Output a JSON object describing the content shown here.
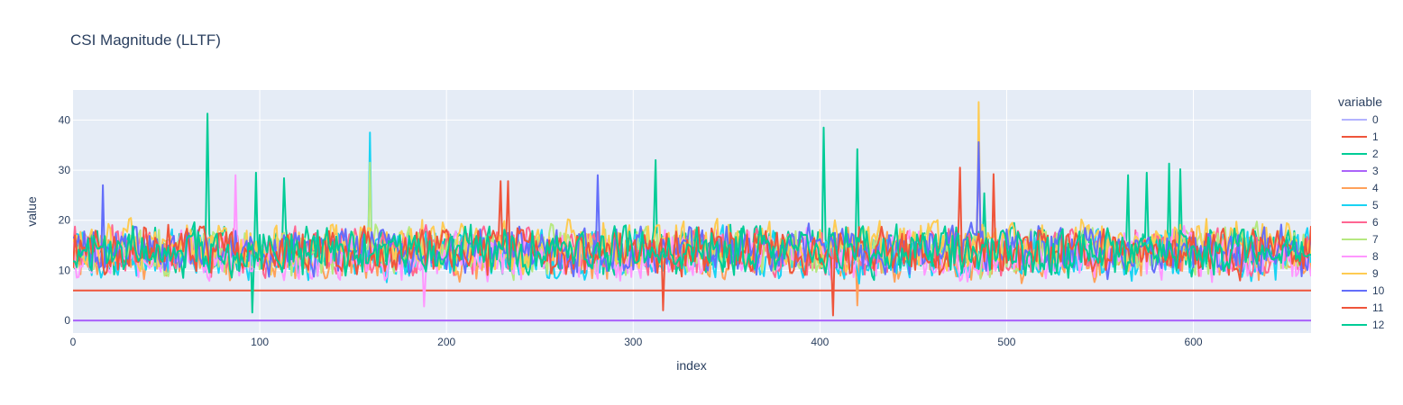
{
  "chart_data": {
    "type": "line",
    "title": "CSI Magnitude (LLTF)",
    "xlabel": "index",
    "ylabel": "value",
    "xlim": [
      0,
      663
    ],
    "ylim": [
      -2.5,
      46
    ],
    "x_ticks": [
      0,
      100,
      200,
      300,
      400,
      500,
      600
    ],
    "y_ticks": [
      0,
      10,
      20,
      30,
      40
    ],
    "grid": true,
    "legend_title": "variable",
    "legend_position": "right",
    "num_points": 664,
    "series": [
      {
        "name": "0",
        "color": "#b3b3ff",
        "kind": "constant",
        "value": 0
      },
      {
        "name": "1",
        "color": "#EF553B",
        "kind": "constant",
        "value": 6
      },
      {
        "name": "2",
        "color": "#00CC96",
        "kind": "noisy",
        "mean": 14,
        "amp": 5,
        "spikes": [
          [
            72,
            41.3
          ],
          [
            98,
            29.5
          ],
          [
            113,
            28.4
          ],
          [
            312,
            32
          ],
          [
            402,
            38.5
          ],
          [
            420,
            34.2
          ],
          [
            488,
            25.4
          ],
          [
            565,
            29
          ],
          [
            575,
            29.5
          ],
          [
            587,
            31.3
          ],
          [
            593,
            30.2
          ],
          [
            96,
            1.6
          ]
        ]
      },
      {
        "name": "3",
        "color": "#AB63FA",
        "kind": "constant",
        "value": 0
      },
      {
        "name": "4",
        "color": "#FFA15A",
        "kind": "noisy",
        "mean": 13,
        "amp": 5,
        "spikes": [
          [
            420,
            3
          ]
        ]
      },
      {
        "name": "5",
        "color": "#19D3F3",
        "kind": "noisy",
        "mean": 13,
        "amp": 5,
        "spikes": [
          [
            159,
            37.5
          ]
        ]
      },
      {
        "name": "6",
        "color": "#FF6692",
        "kind": "noisy",
        "mean": 14,
        "amp": 5,
        "spikes": [
          [
            485,
            33
          ]
        ]
      },
      {
        "name": "7",
        "color": "#B6E880",
        "kind": "noisy",
        "mean": 14,
        "amp": 5,
        "spikes": [
          [
            159,
            31.5
          ]
        ]
      },
      {
        "name": "8",
        "color": "#FF97FF",
        "kind": "noisy",
        "mean": 13,
        "amp": 5,
        "spikes": [
          [
            87,
            29
          ],
          [
            188,
            2.8
          ]
        ]
      },
      {
        "name": "9",
        "color": "#FECB52",
        "kind": "noisy",
        "mean": 15,
        "amp": 5,
        "spikes": [
          [
            485,
            43.6
          ]
        ]
      },
      {
        "name": "10",
        "color": "#636EFA",
        "kind": "noisy",
        "mean": 14,
        "amp": 5,
        "spikes": [
          [
            16,
            27
          ],
          [
            281,
            29
          ],
          [
            485,
            35.6
          ]
        ]
      },
      {
        "name": "11",
        "color": "#EF553B",
        "kind": "noisy",
        "mean": 14,
        "amp": 5,
        "spikes": [
          [
            407,
            1
          ],
          [
            316,
            2
          ],
          [
            475,
            30.5
          ],
          [
            493,
            29.2
          ],
          [
            229,
            27.8
          ],
          [
            233,
            27.8
          ]
        ]
      },
      {
        "name": "12",
        "color": "#00CC96",
        "kind": "noisy",
        "mean": 14,
        "amp": 5,
        "spikes": []
      }
    ]
  }
}
